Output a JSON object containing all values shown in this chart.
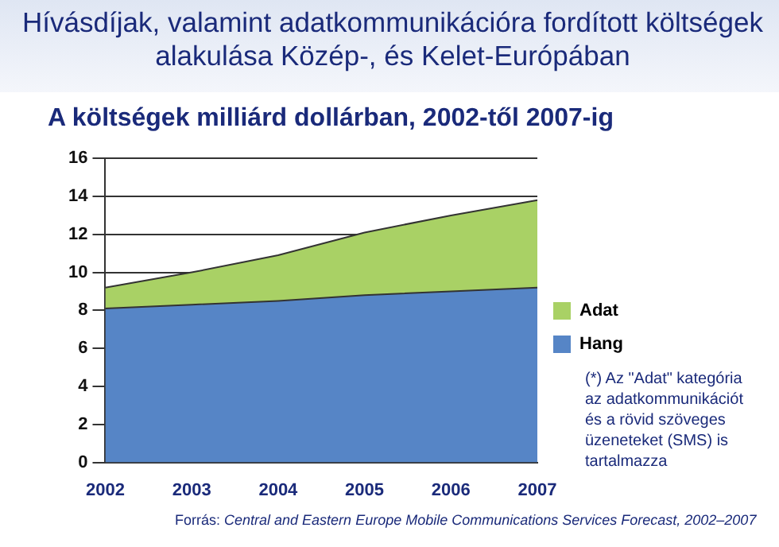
{
  "chart_data": {
    "type": "area",
    "title": "Hívásdíjak, valamint adatkommunikációra fordított költségek alakulása Közép-, és Kelet-Európában",
    "subtitle": "A költségek milliárd dollárban, 2002-től 2007-ig",
    "categories": [
      "2002",
      "2003",
      "2004",
      "2005",
      "2006",
      "2007"
    ],
    "series": [
      {
        "name": "Hang",
        "color": "#5685c6",
        "values": [
          8.1,
          8.3,
          8.5,
          8.8,
          9.0,
          9.2
        ]
      },
      {
        "name": "Adat",
        "color": "#a9d165",
        "values": [
          1.1,
          1.7,
          2.4,
          3.3,
          4.0,
          4.6
        ]
      }
    ],
    "stacked": true,
    "ylim": [
      0,
      16
    ],
    "yticks": [
      0,
      2,
      4,
      6,
      8,
      10,
      12,
      14,
      16
    ],
    "grid": "y",
    "legend": "right",
    "annotations": [
      "(*) Az \"Adat\" kategória az adatkommunikációt és a rövid szöveges üzeneteket (SMS) is tartalmazza",
      "Forrás: Central and Eastern Europe Mobile Communications Services Forecast, 2002–2007"
    ]
  }
}
